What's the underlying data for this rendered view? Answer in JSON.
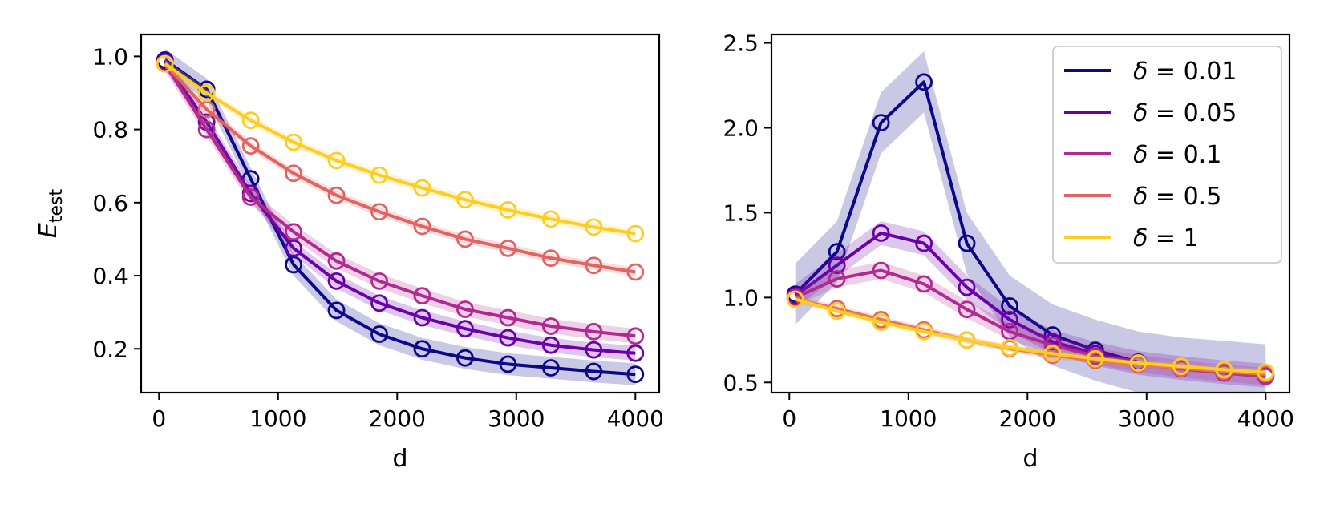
{
  "chart_data": [
    {
      "type": "line",
      "panel": "left",
      "xlabel": "d",
      "ylabel_main": "E",
      "ylabel_sub": "test",
      "xlim": [
        -150,
        4200
      ],
      "ylim": [
        0.08,
        1.06
      ],
      "xticks": [
        0,
        1000,
        2000,
        3000,
        4000
      ],
      "xtick_labels": [
        "0",
        "1000",
        "2000",
        "3000",
        "4000"
      ],
      "yticks": [
        0.2,
        0.4,
        0.6,
        0.8,
        1.0
      ],
      "ytick_labels": [
        "0.2",
        "0.4",
        "0.6",
        "0.8",
        "1.0"
      ],
      "x": [
        50,
        400,
        770,
        1130,
        1490,
        1850,
        2210,
        2570,
        2930,
        3290,
        3650,
        4000
      ],
      "series": [
        {
          "name": "δ = 0.01",
          "color": "#0d0887",
          "values": [
            0.99,
            0.91,
            0.665,
            0.43,
            0.305,
            0.24,
            0.2,
            0.175,
            0.158,
            0.148,
            0.138,
            0.13
          ],
          "band": 0.03
        },
        {
          "name": "δ = 0.05",
          "color": "#6a00a8",
          "values": [
            0.985,
            0.82,
            0.625,
            0.475,
            0.385,
            0.325,
            0.285,
            0.255,
            0.23,
            0.21,
            0.197,
            0.188
          ],
          "band": 0.02
        },
        {
          "name": "δ = 0.1",
          "color": "#b12a90",
          "values": [
            0.98,
            0.8,
            0.615,
            0.52,
            0.44,
            0.385,
            0.345,
            0.308,
            0.285,
            0.262,
            0.247,
            0.235
          ],
          "band": 0.02
        },
        {
          "name": "δ = 0.5",
          "color": "#e16462",
          "values": [
            0.98,
            0.855,
            0.755,
            0.68,
            0.62,
            0.575,
            0.535,
            0.5,
            0.475,
            0.448,
            0.428,
            0.41
          ],
          "band": 0.012
        },
        {
          "name": "δ = 1",
          "color": "#fcce25",
          "values": [
            0.98,
            0.9,
            0.825,
            0.765,
            0.715,
            0.675,
            0.64,
            0.608,
            0.58,
            0.555,
            0.533,
            0.515
          ],
          "band": 0.012
        }
      ]
    },
    {
      "type": "line",
      "panel": "right",
      "xlabel": "d",
      "ylabel_main": "",
      "ylabel_sub": "",
      "xlim": [
        -150,
        4200
      ],
      "ylim": [
        0.44,
        2.55
      ],
      "xticks": [
        0,
        1000,
        2000,
        3000,
        4000
      ],
      "xtick_labels": [
        "0",
        "1000",
        "2000",
        "3000",
        "4000"
      ],
      "yticks": [
        0.5,
        1.0,
        1.5,
        2.0,
        2.5
      ],
      "ytick_labels": [
        "0.5",
        "1.0",
        "1.5",
        "2.0",
        "2.5"
      ],
      "legend_position": "upper-right",
      "x": [
        50,
        400,
        770,
        1130,
        1490,
        1850,
        2210,
        2570,
        2930,
        3290,
        3650,
        4000
      ],
      "series": [
        {
          "name": "δ = 0.01",
          "color": "#0d0887",
          "values": [
            1.02,
            1.27,
            2.03,
            2.27,
            1.32,
            0.95,
            0.78,
            0.69,
            0.62,
            0.585,
            0.565,
            0.545
          ],
          "band": 0.18
        },
        {
          "name": "δ = 0.05",
          "color": "#6a00a8",
          "values": [
            1.01,
            1.19,
            1.38,
            1.32,
            1.06,
            0.87,
            0.74,
            0.67,
            0.615,
            0.585,
            0.56,
            0.54
          ],
          "band": 0.07
        },
        {
          "name": "δ = 0.1",
          "color": "#b12a90",
          "values": [
            1.0,
            1.11,
            1.16,
            1.08,
            0.93,
            0.8,
            0.72,
            0.655,
            0.61,
            0.58,
            0.555,
            0.535
          ],
          "band": 0.05
        },
        {
          "name": "δ = 0.5",
          "color": "#e16462",
          "values": [
            0.99,
            0.935,
            0.87,
            0.81,
            0.75,
            0.7,
            0.66,
            0.63,
            0.605,
            0.585,
            0.565,
            0.55
          ],
          "band": 0.02
        },
        {
          "name": "δ = 1",
          "color": "#fcce25",
          "values": [
            0.99,
            0.92,
            0.855,
            0.8,
            0.75,
            0.705,
            0.67,
            0.64,
            0.615,
            0.595,
            0.575,
            0.56
          ],
          "band": 0.02
        }
      ]
    }
  ]
}
